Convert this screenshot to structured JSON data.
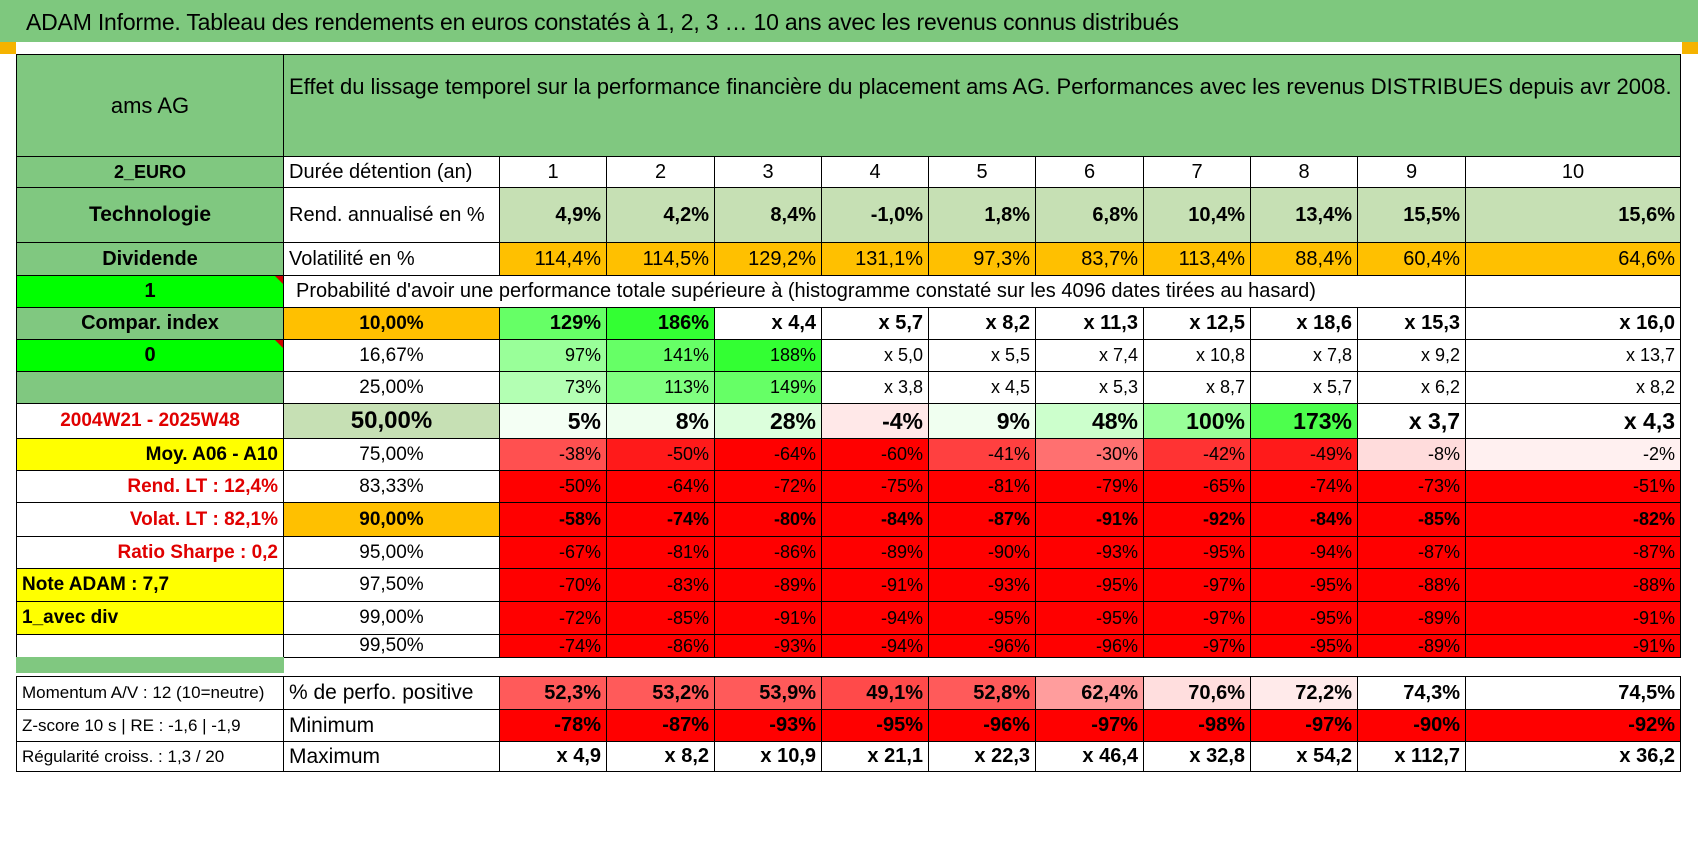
{
  "title": "ADAM Informe. Tableau des rendements en euros constatés à 1, 2, 3 … 10 ans avec les revenus connus distribués",
  "header_name": "ams AG",
  "header_desc": "Effet du lissage temporel sur la performance financière du placement ams AG. Performances avec les revenus DISTRIBUES depuis avr 2008.",
  "left_labels": {
    "currency": "2_EURO",
    "sector": "Technologie",
    "dividend": "Dividende",
    "one": "1",
    "compar": "Compar. index",
    "zero": "0",
    "blank": "",
    "period": "2004W21 - 2025W48",
    "moy": "Moy. A06 - A10",
    "rend_lt": "Rend. LT :    12,4%",
    "volat_lt": "Volat. LT :    82,1%",
    "sharpe": "Ratio Sharpe :     0,2",
    "note": "Note ADAM : 7,7",
    "avecdiv": "1_avec div"
  },
  "duree_label": "Durée détention (an)",
  "years": [
    "1",
    "2",
    "3",
    "4",
    "5",
    "6",
    "7",
    "8",
    "9",
    "10"
  ],
  "rend_label": "Rend. annualisé en %",
  "rend": [
    "4,9%",
    "4,2%",
    "8,4%",
    "-1,0%",
    "1,8%",
    "6,8%",
    "10,4%",
    "13,4%",
    "15,5%",
    "15,6%"
  ],
  "vol_label": "Volatilité en %",
  "vol": [
    "114,4%",
    "114,5%",
    "129,2%",
    "131,1%",
    "97,3%",
    "83,7%",
    "113,4%",
    "88,4%",
    "60,4%",
    "64,6%"
  ],
  "prob_title": "Probabilité d'avoir une performance totale supérieure à (histogramme constaté sur les 4096 dates tirées au hasard)",
  "prob_rows": [
    {
      "pct": "10,00%",
      "vals": [
        "129%",
        "186%",
        "x 4,4",
        "x 5,7",
        "x 8,2",
        "x 11,3",
        "x 12,5",
        "x 18,6",
        "x 15,3",
        "x 16,0"
      ],
      "bg": [
        "#66ff66",
        "#33ff33",
        "#ffffff",
        "#ffffff",
        "#ffffff",
        "#ffffff",
        "#ffffff",
        "#ffffff",
        "#ffffff",
        "#ffffff"
      ]
    },
    {
      "pct": "16,67%",
      "vals": [
        "97%",
        "141%",
        "188%",
        "x 5,0",
        "x 5,5",
        "x 7,4",
        "x 10,8",
        "x 7,8",
        "x 9,2",
        "x 13,7"
      ],
      "bg": [
        "#99ff99",
        "#66ff66",
        "#33ff33",
        "#ffffff",
        "#ffffff",
        "#ffffff",
        "#ffffff",
        "#ffffff",
        "#ffffff",
        "#ffffff"
      ]
    },
    {
      "pct": "25,00%",
      "vals": [
        "73%",
        "113%",
        "149%",
        "x 3,8",
        "x 4,5",
        "x 5,3",
        "x 8,7",
        "x 5,7",
        "x 6,2",
        "x 8,2"
      ],
      "bg": [
        "#b3ffb3",
        "#80ff80",
        "#66ff66",
        "#ffffff",
        "#ffffff",
        "#ffffff",
        "#ffffff",
        "#ffffff",
        "#ffffff",
        "#ffffff"
      ]
    },
    {
      "pct": "50,00%",
      "vals": [
        "5%",
        "8%",
        "28%",
        "-4%",
        "9%",
        "48%",
        "100%",
        "173%",
        "x 3,7",
        "x 4,3"
      ],
      "bg": [
        "#f4fff4",
        "#eeffee",
        "#dcffdc",
        "#ffe8e8",
        "#f0fff0",
        "#ccffcc",
        "#99ff99",
        "#4dff4d",
        "#ffffff",
        "#ffffff"
      ]
    },
    {
      "pct": "75,00%",
      "vals": [
        "-38%",
        "-50%",
        "-64%",
        "-60%",
        "-41%",
        "-30%",
        "-42%",
        "-49%",
        "-8%",
        "-2%"
      ],
      "bg": [
        "#ff5050",
        "#ff1a1a",
        "#ff0000",
        "#ff0000",
        "#ff4040",
        "#ff7070",
        "#ff3333",
        "#ff1a1a",
        "#ffdcdc",
        "#fff0f0"
      ]
    },
    {
      "pct": "83,33%",
      "vals": [
        "-50%",
        "-64%",
        "-72%",
        "-75%",
        "-81%",
        "-79%",
        "-65%",
        "-74%",
        "-73%",
        "-51%"
      ],
      "bg": [
        "#ff0000",
        "#ff0000",
        "#ff0000",
        "#ff0000",
        "#ff0000",
        "#ff0000",
        "#ff0000",
        "#ff0000",
        "#ff0000",
        "#ff0000"
      ]
    },
    {
      "pct": "90,00%",
      "vals": [
        "-58%",
        "-74%",
        "-80%",
        "-84%",
        "-87%",
        "-91%",
        "-92%",
        "-84%",
        "-85%",
        "-82%"
      ],
      "bg": [
        "#ff0000",
        "#ff0000",
        "#ff0000",
        "#ff0000",
        "#ff0000",
        "#ff0000",
        "#ff0000",
        "#ff0000",
        "#ff0000",
        "#ff0000"
      ]
    },
    {
      "pct": "95,00%",
      "vals": [
        "-67%",
        "-81%",
        "-86%",
        "-89%",
        "-90%",
        "-93%",
        "-95%",
        "-94%",
        "-87%",
        "-87%"
      ],
      "bg": [
        "#ff0000",
        "#ff0000",
        "#ff0000",
        "#ff0000",
        "#ff0000",
        "#ff0000",
        "#ff0000",
        "#ff0000",
        "#ff0000",
        "#ff0000"
      ]
    },
    {
      "pct": "97,50%",
      "vals": [
        "-70%",
        "-83%",
        "-89%",
        "-91%",
        "-93%",
        "-95%",
        "-97%",
        "-95%",
        "-88%",
        "-88%"
      ],
      "bg": [
        "#ff0000",
        "#ff0000",
        "#ff0000",
        "#ff0000",
        "#ff0000",
        "#ff0000",
        "#ff0000",
        "#ff0000",
        "#ff0000",
        "#ff0000"
      ]
    },
    {
      "pct": "99,00%",
      "vals": [
        "-72%",
        "-85%",
        "-91%",
        "-94%",
        "-95%",
        "-95%",
        "-97%",
        "-95%",
        "-89%",
        "-91%"
      ],
      "bg": [
        "#ff0000",
        "#ff0000",
        "#ff0000",
        "#ff0000",
        "#ff0000",
        "#ff0000",
        "#ff0000",
        "#ff0000",
        "#ff0000",
        "#ff0000"
      ]
    },
    {
      "pct": "99,50%",
      "vals": [
        "-74%",
        "-86%",
        "-93%",
        "-94%",
        "-96%",
        "-96%",
        "-97%",
        "-95%",
        "-89%",
        "-91%"
      ],
      "bg": [
        "#ff0000",
        "#ff0000",
        "#ff0000",
        "#ff0000",
        "#ff0000",
        "#ff0000",
        "#ff0000",
        "#ff0000",
        "#ff0000",
        "#ff0000"
      ]
    }
  ],
  "bottom": {
    "momentum": "Momentum A/V : 12 (10=neutre)",
    "zscore": "Z-score 10 s | RE : -1,6 | -1,9",
    "regul": "Régularité croiss. : 1,3 / 20",
    "pos_label": "% de perfo. positive",
    "pos": [
      "52,3%",
      "53,2%",
      "53,9%",
      "49,1%",
      "52,8%",
      "62,4%",
      "70,6%",
      "72,2%",
      "74,3%",
      "74,5%"
    ],
    "pos_bg": [
      "#ff5a5a",
      "#ff5a5a",
      "#ff5a5a",
      "#ff4a4a",
      "#ff5a5a",
      "#ff9d9d",
      "#ffdede",
      "#ffeaea",
      "#ffffff",
      "#ffffff"
    ],
    "min_label": "Minimum",
    "min": [
      "-78%",
      "-87%",
      "-93%",
      "-95%",
      "-96%",
      "-97%",
      "-98%",
      "-97%",
      "-90%",
      "-92%"
    ],
    "max_label": "Maximum",
    "max": [
      "x 4,9",
      "x 8,2",
      "x 10,9",
      "x 21,1",
      "x 22,3",
      "x 46,4",
      "x 32,8",
      "x 54,2",
      "x 112,7",
      "x 36,2"
    ]
  },
  "colors": {
    "header_green": "#80c880",
    "light_green": "#c6e0b4",
    "bright_green": "#00ff00",
    "yellow": "#ffff00",
    "orange": "#ffc000",
    "red": "#ff0000",
    "label_red": "#e00000"
  }
}
